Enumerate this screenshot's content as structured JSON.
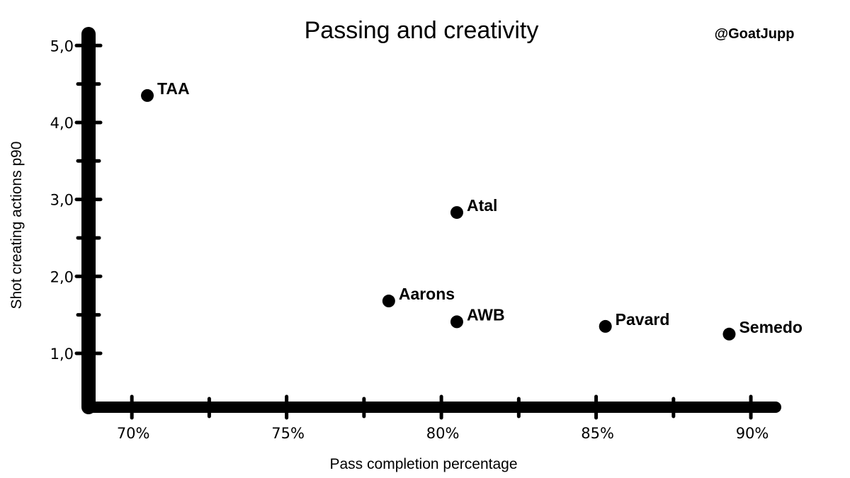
{
  "chart_data": {
    "type": "scatter",
    "title": "Passing and creativity",
    "handle": "@GoatJupp",
    "xlabel": "Pass completion percentage",
    "ylabel": "Shot creating actions p90",
    "xlim": [
      68.6,
      90.8
    ],
    "ylim": [
      0.3,
      5.15
    ],
    "x_ticks_major": [
      70,
      75,
      80,
      85,
      90
    ],
    "x_ticks_minor": [
      72.5,
      77.5,
      82.5,
      87.5
    ],
    "x_tick_labels": [
      "70%",
      "75%",
      "80%",
      "85%",
      "90%"
    ],
    "y_ticks_major": [
      1.0,
      2.0,
      3.0,
      4.0,
      5.0
    ],
    "y_ticks_minor": [
      1.5,
      2.5,
      3.5,
      4.5
    ],
    "y_tick_labels": [
      "1,0",
      "2,0",
      "3,0",
      "4,0",
      "5,0"
    ],
    "grid": false,
    "points": [
      {
        "name": "TAA",
        "x": 70.5,
        "y": 4.35
      },
      {
        "name": "Atal",
        "x": 80.5,
        "y": 2.83
      },
      {
        "name": "Aarons",
        "x": 78.3,
        "y": 1.68
      },
      {
        "name": "AWB",
        "x": 80.5,
        "y": 1.41
      },
      {
        "name": "Pavard",
        "x": 85.3,
        "y": 1.35
      },
      {
        "name": "Semedo",
        "x": 89.3,
        "y": 1.25
      }
    ]
  }
}
